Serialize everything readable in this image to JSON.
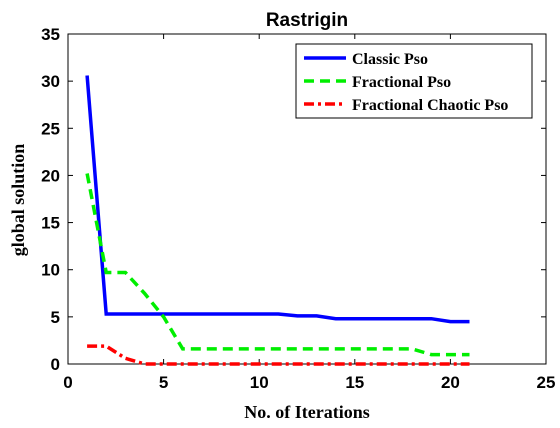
{
  "chart_data": {
    "type": "line",
    "title": "Rastrigin",
    "xlabel": "No. of Iterations",
    "ylabel": "global solution",
    "xlim": [
      0,
      25
    ],
    "ylim": [
      0,
      35
    ],
    "xticks": [
      0,
      5,
      10,
      15,
      20,
      25
    ],
    "yticks": [
      0,
      5,
      10,
      15,
      20,
      25,
      30,
      35
    ],
    "grid": false,
    "legend_position": "top-right",
    "series": [
      {
        "name": "Classic Pso",
        "color": "#0000ff",
        "style": "solid",
        "x": [
          1,
          2,
          3,
          4,
          5,
          6,
          7,
          8,
          9,
          10,
          11,
          12,
          13,
          14,
          15,
          16,
          17,
          18,
          19,
          20,
          21
        ],
        "y": [
          30.6,
          5.3,
          5.3,
          5.3,
          5.3,
          5.3,
          5.3,
          5.3,
          5.3,
          5.3,
          5.3,
          5.1,
          5.1,
          4.8,
          4.8,
          4.8,
          4.8,
          4.8,
          4.8,
          4.5,
          4.5
        ]
      },
      {
        "name": "Fractional Pso",
        "color": "#00ee00",
        "style": "dashed",
        "x": [
          1,
          2,
          3,
          4,
          5,
          6,
          7,
          8,
          9,
          10,
          11,
          12,
          13,
          14,
          15,
          16,
          17,
          18,
          19,
          20,
          21
        ],
        "y": [
          20.2,
          9.7,
          9.7,
          7.5,
          5.0,
          1.6,
          1.6,
          1.6,
          1.6,
          1.6,
          1.6,
          1.6,
          1.6,
          1.6,
          1.6,
          1.6,
          1.6,
          1.6,
          1.0,
          1.0,
          1.0
        ]
      },
      {
        "name": "Fractional Chaotic Pso",
        "color": "#ff0000",
        "style": "dashdot",
        "x": [
          1,
          2,
          3,
          4,
          5,
          6,
          7,
          8,
          9,
          10,
          11,
          12,
          13,
          14,
          15,
          16,
          17,
          18,
          19,
          20,
          21
        ],
        "y": [
          1.9,
          1.9,
          0.6,
          0.0,
          0.0,
          0.0,
          0.0,
          0.0,
          0.0,
          0.0,
          0.0,
          0.0,
          0.0,
          0.0,
          0.0,
          0.0,
          0.0,
          0.0,
          0.0,
          0.0,
          0.0
        ]
      }
    ]
  }
}
